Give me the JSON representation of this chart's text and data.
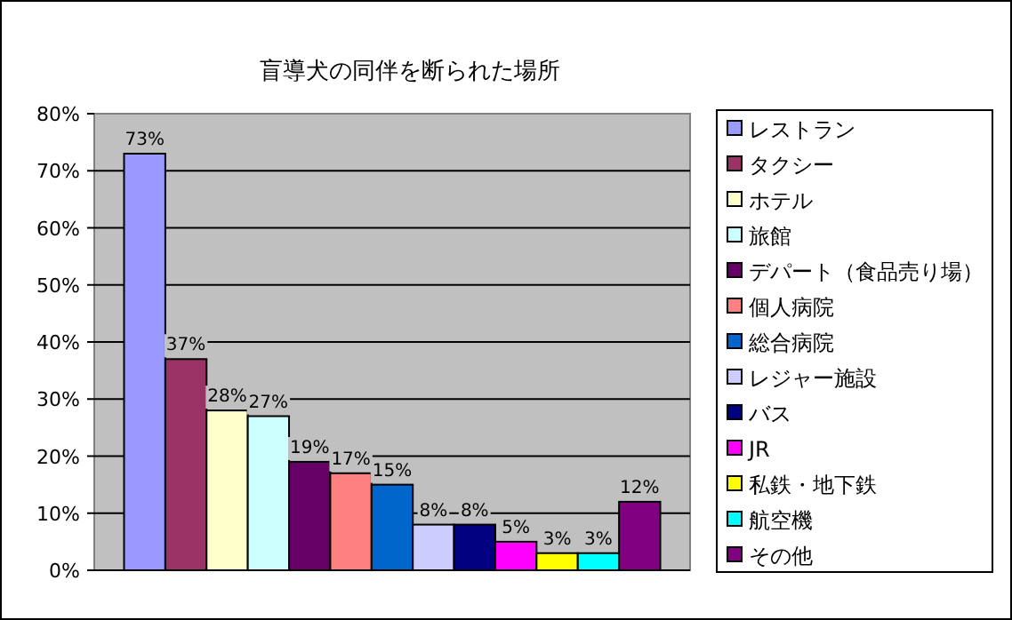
{
  "chart_data": {
    "type": "bar",
    "title": "盲導犬の同伴を断られた場所",
    "categories": [
      null
    ],
    "series": [
      {
        "name": "レストラン",
        "color": "#9999ff",
        "values": [
          73
        ],
        "value_labels": [
          "73%"
        ]
      },
      {
        "name": "タクシー",
        "color": "#993366",
        "values": [
          37
        ],
        "value_labels": [
          "37%"
        ]
      },
      {
        "name": "ホテル",
        "color": "#ffffcc",
        "values": [
          28
        ],
        "value_labels": [
          "28%"
        ]
      },
      {
        "name": "旅館",
        "color": "#ccffff",
        "values": [
          27
        ],
        "value_labels": [
          "27%"
        ]
      },
      {
        "name": "デパート（食品売り場）",
        "color": "#660066",
        "values": [
          19
        ],
        "value_labels": [
          "19%"
        ]
      },
      {
        "name": "個人病院",
        "color": "#ff8080",
        "values": [
          17
        ],
        "value_labels": [
          "17%"
        ]
      },
      {
        "name": "総合病院",
        "color": "#0066cc",
        "values": [
          15
        ],
        "value_labels": [
          "15%"
        ]
      },
      {
        "name": "レジャー施設",
        "color": "#ccccff",
        "values": [
          8
        ],
        "value_labels": [
          "8%"
        ]
      },
      {
        "name": "バス",
        "color": "#000080",
        "values": [
          8
        ],
        "value_labels": [
          "8%"
        ]
      },
      {
        "name": "JR",
        "color": "#ff00ff",
        "values": [
          5
        ],
        "value_labels": [
          "5%"
        ]
      },
      {
        "name": "私鉄・地下鉄",
        "color": "#ffff00",
        "values": [
          3
        ],
        "value_labels": [
          "3%"
        ]
      },
      {
        "name": "航空機",
        "color": "#00ffff",
        "values": [
          3
        ],
        "value_labels": [
          "3%"
        ]
      },
      {
        "name": "その他",
        "color": "#800080",
        "values": [
          12
        ],
        "value_labels": [
          "12%"
        ]
      }
    ],
    "ylim": [
      0,
      80
    ],
    "yticks": [
      {
        "value": 0,
        "label": "0%"
      },
      {
        "value": 10,
        "label": "10%"
      },
      {
        "value": 20,
        "label": "20%"
      },
      {
        "value": 30,
        "label": "30%"
      },
      {
        "value": 40,
        "label": "40%"
      },
      {
        "value": 50,
        "label": "50%"
      },
      {
        "value": 60,
        "label": "60%"
      },
      {
        "value": 70,
        "label": "70%"
      },
      {
        "value": 80,
        "label": "80%"
      }
    ],
    "grid": "y",
    "legend": "right"
  }
}
